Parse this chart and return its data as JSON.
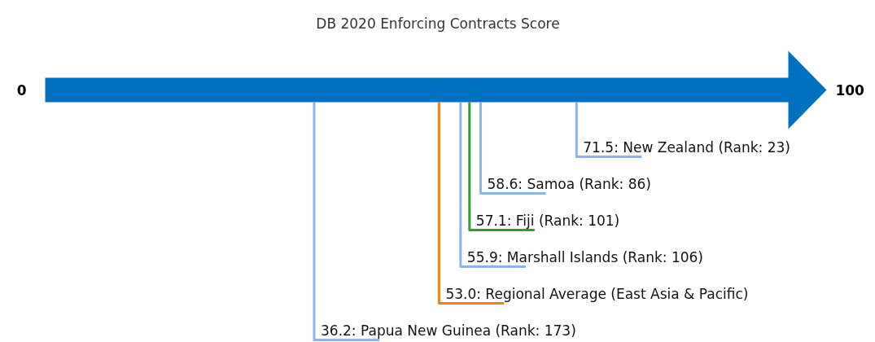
{
  "chart_data": {
    "type": "other",
    "title": "DB 2020 Enforcing Contracts Score",
    "annotations": [
      "0",
      "100"
    ],
    "values": [
      71.5,
      58.6,
      57.1,
      55.9,
      53.0,
      36.2
    ],
    "value_labels": [
      "71.5: New Zealand (Rank: 23)",
      "58.6: Samoa (Rank: 86)",
      "57.1: Fiji (Rank: 101)",
      "55.9: Marshall Islands (Rank: 106)",
      "53.0: Regional Average (East Asia & Pacific)",
      "36.2: Papua New Guinea (Rank: 173)"
    ],
    "colors": [
      "#8db3e8",
      "#8db3e8",
      "#2ca02c",
      "#8db3e8",
      "#ff7f0e",
      "#8db3e8"
    ]
  }
}
